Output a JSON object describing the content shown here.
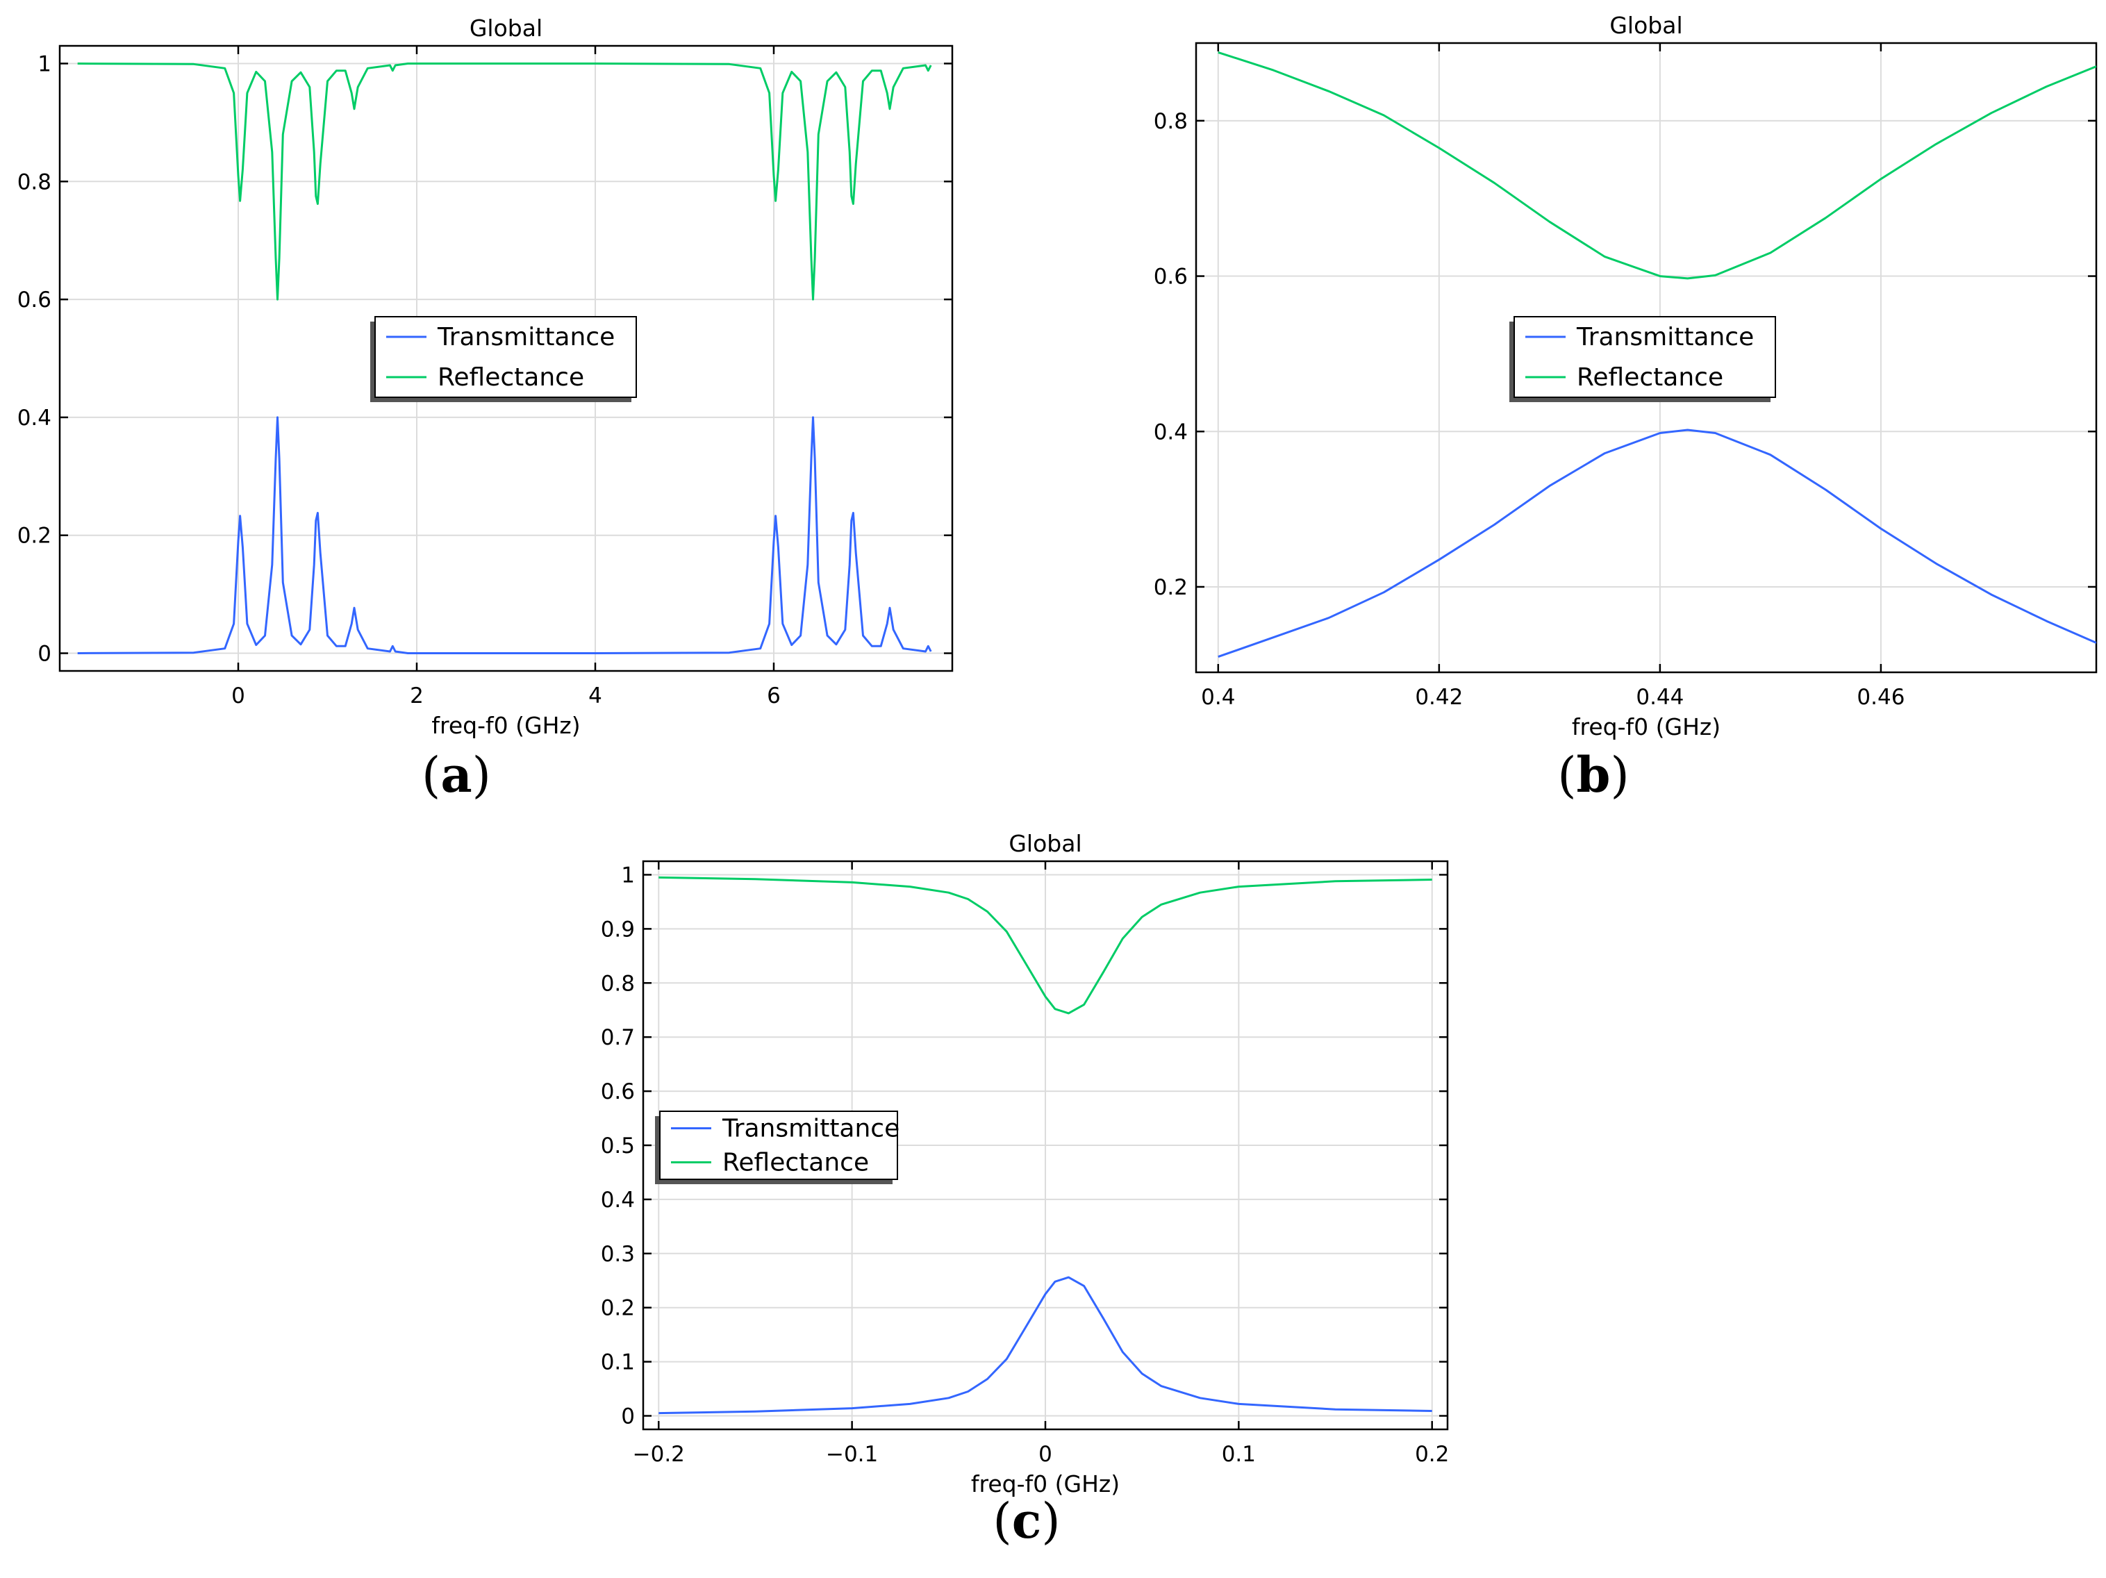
{
  "colors": {
    "transmittance": "#3366ff",
    "reflectance": "#00cc66",
    "grid": "#dcdcdc"
  },
  "chart_data": [
    {
      "type": "line",
      "panel_label": "a",
      "title": "Global",
      "xlabel": "freq-f0 (GHz)",
      "ylabel": "",
      "xlim": [
        -2.0,
        8.0
      ],
      "ylim": [
        -0.03,
        1.03
      ],
      "xticks": [
        0,
        2,
        4,
        6
      ],
      "xtick_labels": [
        "0",
        "2",
        "4",
        "6"
      ],
      "yticks": [
        0,
        0.2,
        0.4,
        0.6,
        0.8,
        1
      ],
      "ytick_labels": [
        "0",
        "0.2",
        "0.4",
        "0.6",
        "0.8",
        "1"
      ],
      "legend": {
        "position": "center",
        "entries": [
          "Transmittance",
          "Reflectance"
        ]
      },
      "series": [
        {
          "name": "Transmittance",
          "color": "#3366ff",
          "x": [
            -1.8,
            -0.5,
            -0.15,
            -0.05,
            0.0,
            0.02,
            0.05,
            0.1,
            0.2,
            0.3,
            0.38,
            0.42,
            0.44,
            0.46,
            0.5,
            0.6,
            0.7,
            0.8,
            0.85,
            0.87,
            0.89,
            0.92,
            1.0,
            1.1,
            1.2,
            1.27,
            1.3,
            1.34,
            1.45,
            1.7,
            1.73,
            1.76,
            1.9,
            2.2,
            4.0,
            5.5,
            5.85,
            5.95,
            6.0,
            6.02,
            6.05,
            6.1,
            6.2,
            6.3,
            6.38,
            6.42,
            6.44,
            6.46,
            6.5,
            6.6,
            6.7,
            6.8,
            6.85,
            6.87,
            6.89,
            6.92,
            7.0,
            7.1,
            7.2,
            7.27,
            7.3,
            7.34,
            7.45,
            7.7,
            7.73,
            7.76
          ],
          "y": [
            0.0,
            0.001,
            0.008,
            0.05,
            0.19,
            0.233,
            0.18,
            0.05,
            0.014,
            0.03,
            0.15,
            0.33,
            0.4,
            0.33,
            0.12,
            0.03,
            0.015,
            0.04,
            0.15,
            0.225,
            0.238,
            0.17,
            0.03,
            0.012,
            0.012,
            0.05,
            0.077,
            0.04,
            0.008,
            0.003,
            0.012,
            0.003,
            0.0,
            0.0,
            0.0,
            0.001,
            0.008,
            0.05,
            0.19,
            0.233,
            0.18,
            0.05,
            0.014,
            0.03,
            0.15,
            0.33,
            0.4,
            0.33,
            0.12,
            0.03,
            0.015,
            0.04,
            0.15,
            0.225,
            0.238,
            0.17,
            0.03,
            0.012,
            0.012,
            0.05,
            0.077,
            0.04,
            0.008,
            0.003,
            0.012,
            0.003
          ]
        },
        {
          "name": "Reflectance",
          "color": "#00cc66",
          "x": [
            -1.8,
            -0.5,
            -0.15,
            -0.05,
            0.0,
            0.02,
            0.05,
            0.1,
            0.2,
            0.3,
            0.38,
            0.42,
            0.44,
            0.46,
            0.5,
            0.6,
            0.7,
            0.8,
            0.85,
            0.87,
            0.89,
            0.92,
            1.0,
            1.1,
            1.2,
            1.27,
            1.3,
            1.34,
            1.45,
            1.7,
            1.73,
            1.76,
            1.9,
            2.2,
            4.0,
            5.5,
            5.85,
            5.95,
            6.0,
            6.02,
            6.05,
            6.1,
            6.2,
            6.3,
            6.38,
            6.42,
            6.44,
            6.46,
            6.5,
            6.6,
            6.7,
            6.8,
            6.85,
            6.87,
            6.89,
            6.92,
            7.0,
            7.1,
            7.2,
            7.27,
            7.3,
            7.34,
            7.45,
            7.7,
            7.73,
            7.76
          ],
          "y": [
            1.0,
            0.999,
            0.992,
            0.95,
            0.81,
            0.767,
            0.82,
            0.95,
            0.986,
            0.97,
            0.85,
            0.67,
            0.6,
            0.67,
            0.88,
            0.97,
            0.985,
            0.96,
            0.85,
            0.775,
            0.762,
            0.83,
            0.97,
            0.988,
            0.988,
            0.95,
            0.923,
            0.96,
            0.992,
            0.997,
            0.988,
            0.997,
            1.0,
            1.0,
            1.0,
            0.999,
            0.992,
            0.95,
            0.81,
            0.767,
            0.82,
            0.95,
            0.986,
            0.97,
            0.85,
            0.67,
            0.6,
            0.67,
            0.88,
            0.97,
            0.985,
            0.96,
            0.85,
            0.775,
            0.762,
            0.83,
            0.97,
            0.988,
            0.988,
            0.95,
            0.923,
            0.96,
            0.992,
            0.997,
            0.988,
            0.997
          ]
        }
      ]
    },
    {
      "type": "line",
      "panel_label": "b",
      "title": "Global",
      "xlabel": "freq-f0 (GHz)",
      "ylabel": "",
      "xlim": [
        0.398,
        0.4795
      ],
      "ylim": [
        0.09,
        0.9
      ],
      "xticks": [
        0.4,
        0.42,
        0.44,
        0.46
      ],
      "xtick_labels": [
        "0.4",
        "0.42",
        "0.44",
        "0.46"
      ],
      "yticks": [
        0.2,
        0.4,
        0.6,
        0.8
      ],
      "ytick_labels": [
        "0.2",
        "0.4",
        "0.6",
        "0.8"
      ],
      "legend": {
        "position": "center",
        "entries": [
          "Transmittance",
          "Reflectance"
        ]
      },
      "series": [
        {
          "name": "Transmittance",
          "color": "#3366ff",
          "x": [
            0.4,
            0.405,
            0.41,
            0.415,
            0.42,
            0.425,
            0.43,
            0.435,
            0.44,
            0.4425,
            0.445,
            0.45,
            0.455,
            0.46,
            0.465,
            0.47,
            0.475,
            0.4795
          ],
          "y": [
            0.11,
            0.135,
            0.16,
            0.193,
            0.235,
            0.28,
            0.33,
            0.372,
            0.398,
            0.402,
            0.398,
            0.37,
            0.325,
            0.275,
            0.23,
            0.19,
            0.156,
            0.128
          ]
        },
        {
          "name": "Reflectance",
          "color": "#00cc66",
          "x": [
            0.4,
            0.405,
            0.41,
            0.415,
            0.42,
            0.425,
            0.43,
            0.435,
            0.44,
            0.4425,
            0.445,
            0.45,
            0.455,
            0.46,
            0.465,
            0.47,
            0.475,
            0.4795
          ],
          "y": [
            0.888,
            0.865,
            0.838,
            0.807,
            0.765,
            0.72,
            0.67,
            0.625,
            0.6,
            0.597,
            0.601,
            0.63,
            0.675,
            0.725,
            0.77,
            0.81,
            0.844,
            0.87
          ]
        }
      ]
    },
    {
      "type": "line",
      "panel_label": "c",
      "title": "Global",
      "xlabel": "freq-f0 (GHz)",
      "ylabel": "",
      "xlim": [
        -0.208,
        0.208
      ],
      "ylim": [
        -0.025,
        1.025
      ],
      "xticks": [
        -0.2,
        -0.1,
        0,
        0.1,
        0.2
      ],
      "xtick_labels": [
        "−0.2",
        "−0.1",
        "0",
        "0.1",
        "0.2"
      ],
      "yticks": [
        0,
        0.1,
        0.2,
        0.3,
        0.4,
        0.5,
        0.6,
        0.7,
        0.8,
        0.9,
        1
      ],
      "ytick_labels": [
        "0",
        "0.1",
        "0.2",
        "0.3",
        "0.4",
        "0.5",
        "0.6",
        "0.7",
        "0.8",
        "0.9",
        "1"
      ],
      "legend": {
        "position": "center-left",
        "entries": [
          "Transmittance",
          "Reflectance"
        ]
      },
      "series": [
        {
          "name": "Transmittance",
          "color": "#3366ff",
          "x": [
            -0.2,
            -0.15,
            -0.1,
            -0.07,
            -0.05,
            -0.04,
            -0.03,
            -0.02,
            -0.01,
            0.0,
            0.005,
            0.012,
            0.02,
            0.03,
            0.04,
            0.05,
            0.06,
            0.08,
            0.1,
            0.15,
            0.2
          ],
          "y": [
            0.005,
            0.008,
            0.014,
            0.022,
            0.033,
            0.045,
            0.068,
            0.105,
            0.165,
            0.225,
            0.248,
            0.256,
            0.24,
            0.18,
            0.118,
            0.078,
            0.055,
            0.033,
            0.022,
            0.012,
            0.009
          ]
        },
        {
          "name": "Reflectance",
          "color": "#00cc66",
          "x": [
            -0.2,
            -0.15,
            -0.1,
            -0.07,
            -0.05,
            -0.04,
            -0.03,
            -0.02,
            -0.01,
            0.0,
            0.005,
            0.012,
            0.02,
            0.03,
            0.04,
            0.05,
            0.06,
            0.08,
            0.1,
            0.15,
            0.2
          ],
          "y": [
            0.995,
            0.992,
            0.986,
            0.978,
            0.967,
            0.955,
            0.932,
            0.895,
            0.835,
            0.775,
            0.752,
            0.744,
            0.76,
            0.82,
            0.882,
            0.922,
            0.945,
            0.967,
            0.978,
            0.988,
            0.991
          ]
        }
      ]
    }
  ]
}
